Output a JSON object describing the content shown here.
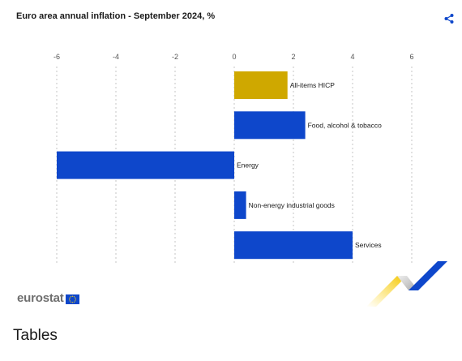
{
  "header": {
    "title": "Euro area annual inflation - September 2024, %"
  },
  "colors": {
    "highlight": "#cfa800",
    "series": "#0e47cb",
    "grid": "#c4c4c4",
    "axis_text": "#555555"
  },
  "chart_data": {
    "type": "bar",
    "orientation": "horizontal",
    "title": "Euro area annual inflation - September 2024, %",
    "xlabel": "",
    "ylabel": "",
    "xlim": [
      -6,
      6
    ],
    "xticks": [
      -6,
      -4,
      -2,
      0,
      2,
      4,
      6
    ],
    "tick_position": "top",
    "grid": "vertical dashed",
    "legend": "none",
    "categories": [
      "All-items HICP",
      "Food, alcohol & tobacco",
      "Energy",
      "Non-energy industrial goods",
      "Services"
    ],
    "values": [
      1.8,
      2.4,
      -6.0,
      0.4,
      4.0
    ],
    "bar_colors": [
      "#cfa800",
      "#0e47cb",
      "#0e47cb",
      "#0e47cb",
      "#0e47cb"
    ]
  },
  "footer": {
    "logo_text": "eurostat",
    "tables_heading": "Tables"
  }
}
